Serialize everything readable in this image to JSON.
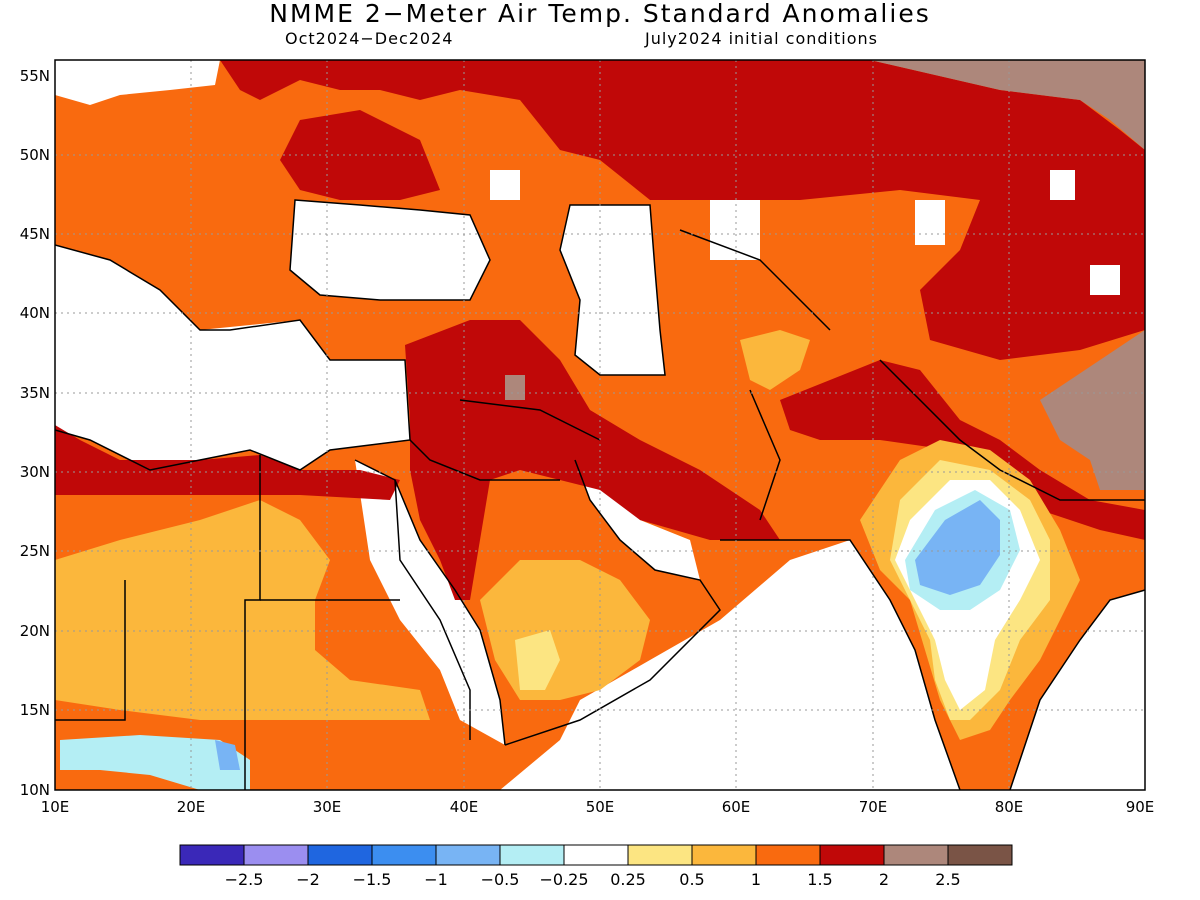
{
  "title": "NMME 2−Meter Air Temp. Standard Anomalies",
  "subtitle_left": "Oct2024−Dec2024",
  "subtitle_right": "July2024 initial conditions",
  "lat_labels": [
    "55N",
    "50N",
    "45N",
    "40N",
    "35N",
    "30N",
    "25N",
    "20N",
    "15N",
    "10N"
  ],
  "lon_labels": [
    "10E",
    "20E",
    "30E",
    "40E",
    "50E",
    "60E",
    "70E",
    "80E",
    "90E"
  ],
  "colorbar": {
    "colors": [
      "#3a28b8",
      "#9b8ef0",
      "#1f66e0",
      "#3c8ef0",
      "#78b4f4",
      "#b4eef4",
      "#ffffff",
      "#fce582",
      "#fbb73c",
      "#f96a0f",
      "#c00808",
      "#ad877b",
      "#7a5446"
    ],
    "labels": [
      "−2.5",
      "−2",
      "−1.5",
      "−1",
      "−0.5",
      "−0.25",
      "0.25",
      "0.5",
      "1",
      "1.5",
      "2",
      "2.5"
    ]
  },
  "regions": {
    "land_background": "#f96a0f",
    "notes": "Strong warm anomalies over Middle East/Central Asia; cool anomaly over central India"
  }
}
